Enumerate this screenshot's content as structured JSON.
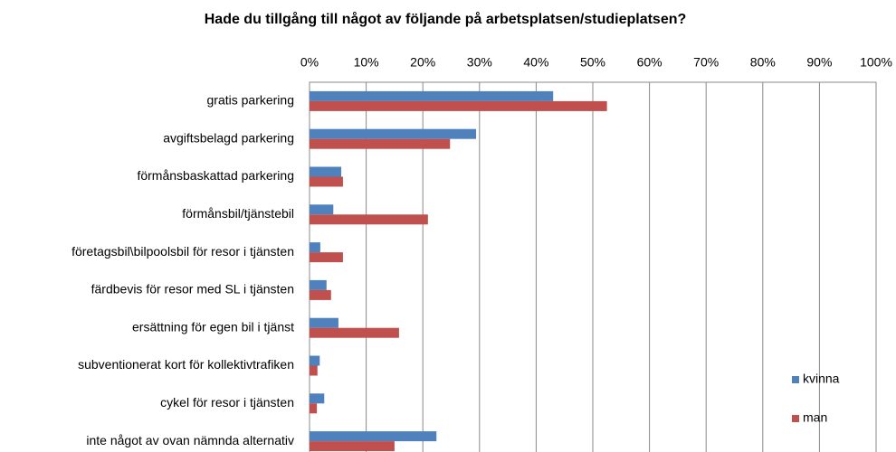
{
  "chart_data": {
    "type": "bar",
    "orientation": "horizontal",
    "title": "Hade du tillgång till något av följande på arbetsplatsen/studieplatsen?",
    "categories": [
      "gratis parkering",
      "avgiftsbelagd parkering",
      "förmånsbaskattad parkering",
      "förmånsbil/tjänstebil",
      "företagsbil\\bilpoolsbil för resor i tjänsten",
      "färdbevis för resor med SL i tjänsten",
      "ersättning för egen bil i tjänst",
      "subventionerat kort för kollektivtrafiken",
      "cykel för resor i tjänsten",
      "inte något av ovan nämnda alternativ"
    ],
    "series": [
      {
        "name": "kvinna",
        "color": "#4f81bd",
        "values": [
          43,
          29.4,
          5.6,
          4.2,
          1.9,
          3.0,
          5.1,
          1.8,
          2.6,
          22.4
        ]
      },
      {
        "name": "man",
        "color": "#c0504d",
        "values": [
          52.5,
          24.8,
          5.9,
          20.9,
          5.9,
          3.8,
          15.8,
          1.4,
          1.3,
          15.0
        ]
      }
    ],
    "xlim": [
      0,
      100
    ],
    "xticks": [
      {
        "value": 0,
        "label": "0%"
      },
      {
        "value": 10,
        "label": "10%"
      },
      {
        "value": 20,
        "label": "20%"
      },
      {
        "value": 30,
        "label": "30%"
      },
      {
        "value": 40,
        "label": "40%"
      },
      {
        "value": 50,
        "label": "50%"
      },
      {
        "value": 60,
        "label": "60%"
      },
      {
        "value": 70,
        "label": "70%"
      },
      {
        "value": 80,
        "label": "80%"
      },
      {
        "value": 90,
        "label": "90%"
      },
      {
        "value": 100,
        "label": "100%"
      }
    ],
    "grid": true,
    "legend": "lower right"
  }
}
